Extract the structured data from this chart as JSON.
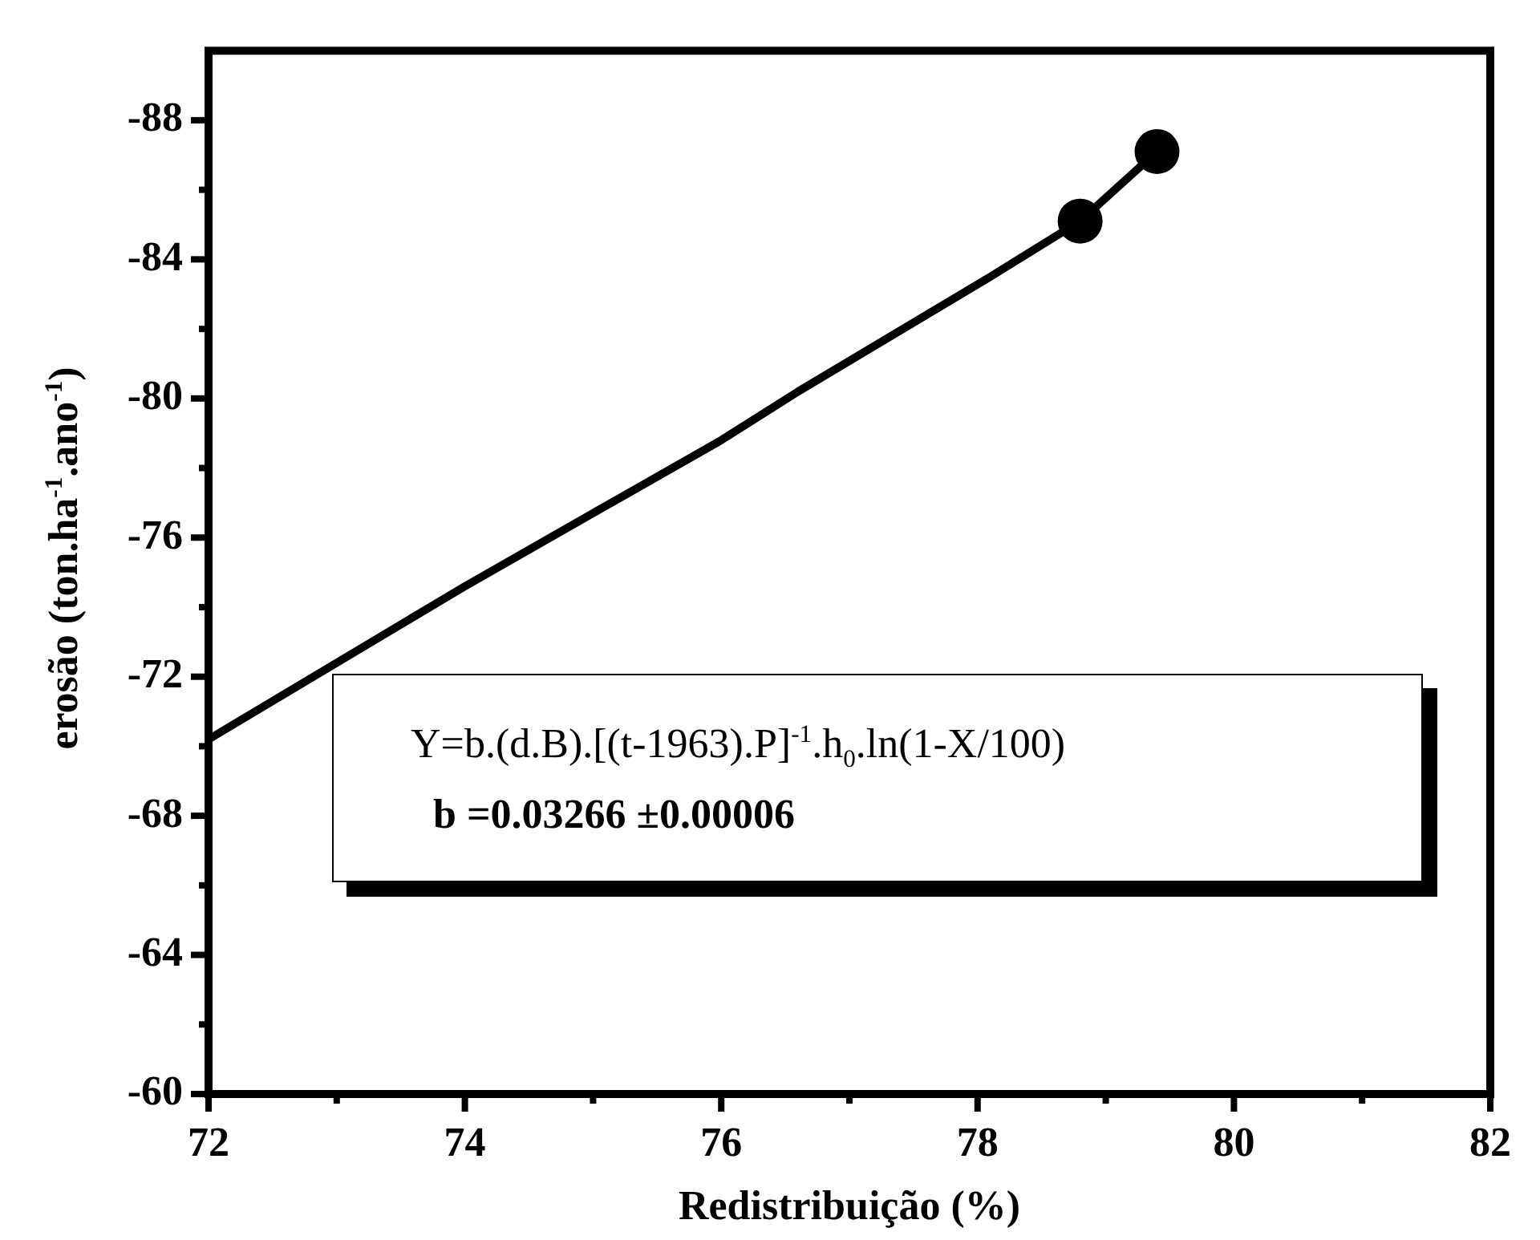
{
  "chart_data": {
    "type": "scatter",
    "xlabel": "Redistribuição (%)",
    "ylabel": "erosão (ton.ha$^{-1}$.ano$^{-1}$)",
    "xlim": [
      72,
      82
    ],
    "ylim": [
      -60,
      -90
    ],
    "xticks": [
      72,
      {
        "value": 73,
        "label": null
      },
      74,
      {
        "value": 75,
        "label": null
      },
      76,
      {
        "value": 77,
        "label": null
      },
      78,
      {
        "value": 79,
        "label": null
      },
      80,
      {
        "value": 81,
        "label": null
      },
      82
    ],
    "yticks": [
      -60,
      {
        "value": -62,
        "label": null
      },
      -64,
      {
        "value": -66,
        "label": null
      },
      -68,
      {
        "value": -70,
        "label": null
      },
      -72,
      {
        "value": -74,
        "label": null
      },
      -76,
      {
        "value": -78,
        "label": null
      },
      -80,
      {
        "value": -82,
        "label": null
      },
      -84,
      {
        "value": -86,
        "label": null
      },
      -88
    ],
    "grid": false,
    "legend": false,
    "series": [
      {
        "type": "line",
        "color": "#000000",
        "marker": "none",
        "x": [
          72,
          74,
          76,
          76.6,
          78.1,
          78.8,
          79.4
        ],
        "values": [
          -70.2,
          -74.6,
          -78.8,
          -80.2,
          -83.5,
          -85.1,
          -87.1
        ]
      },
      {
        "type": "scatter",
        "color": "#000000",
        "marker": "circle",
        "x": [
          78.8,
          79.4
        ],
        "values": [
          -85.1,
          -87.1
        ]
      }
    ],
    "annotations": [
      "Y=b.(d.B).[(t-1963).P]$^{-1}$.h$_{0}$.ln(1-X/100)",
      "b =0.03266 ±0.00006"
    ]
  }
}
